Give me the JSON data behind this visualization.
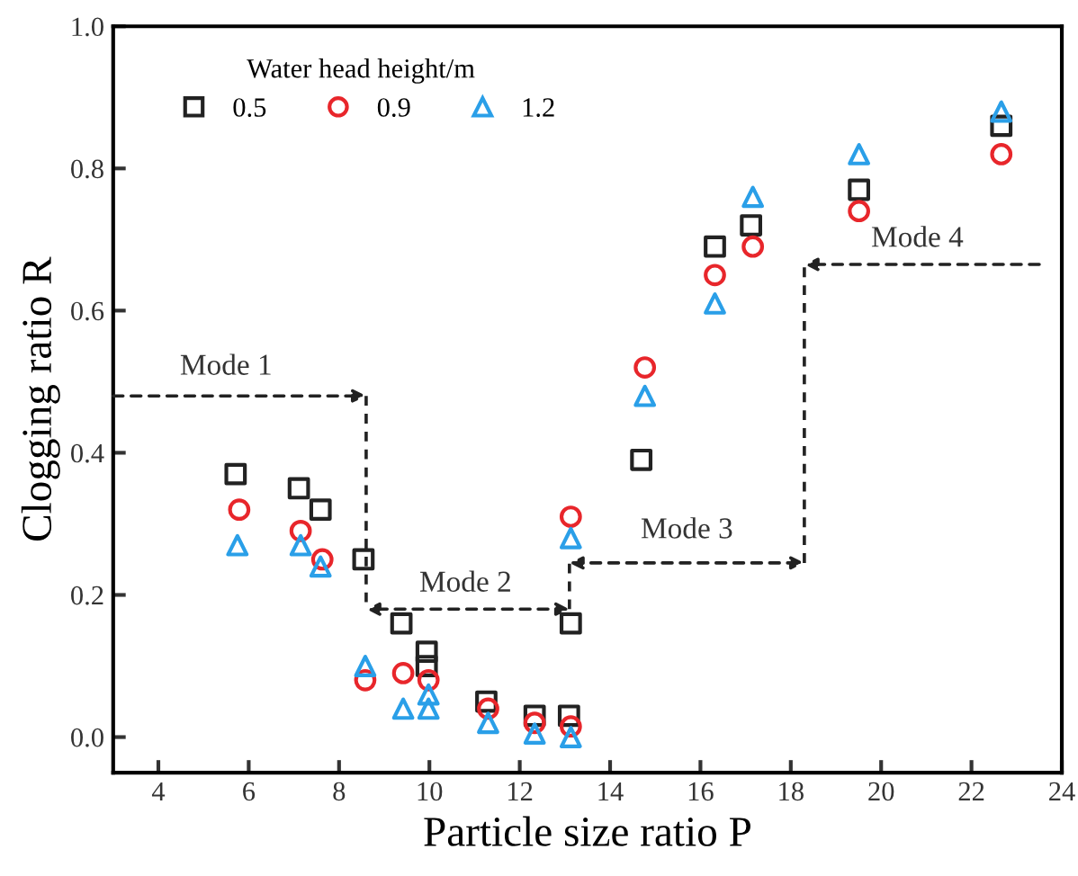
{
  "chart_data": {
    "type": "scatter",
    "xlabel": "Particle size ratio P",
    "ylabel": "Clogging ratio R",
    "legend_title": "Water head height/m",
    "legend": "top left",
    "grid": false,
    "xlim": [
      3,
      24
    ],
    "xticks": [
      4,
      6,
      8,
      10,
      12,
      14,
      16,
      18,
      20,
      22,
      24
    ],
    "ylim": [
      -0.05,
      1.0
    ],
    "yticks": [
      {
        "value": 0,
        "label": "0.0"
      },
      {
        "value": 0.2,
        "label": "0.2"
      },
      {
        "value": 0.4,
        "label": "0.4"
      },
      {
        "value": 0.6,
        "label": "0.6"
      },
      {
        "value": 0.8,
        "label": "0.8"
      },
      {
        "value": 1.0,
        "label": "1.0"
      }
    ],
    "annotations": [
      "Mode 1",
      "Mode 2",
      "Mode 3",
      "Mode 4"
    ],
    "series": [
      {
        "name": "0.5",
        "color": "#222222",
        "marker": "square",
        "x": [
          5.71,
          7.11,
          7.59,
          8.54,
          9.38,
          9.94,
          9.94,
          11.26,
          12.33,
          13.09,
          13.13,
          14.69,
          16.32,
          17.12,
          19.51,
          22.66
        ],
        "values": [
          0.37,
          0.35,
          0.32,
          0.25,
          0.16,
          0.12,
          0.1,
          0.05,
          0.03,
          0.03,
          0.16,
          0.39,
          0.69,
          0.72,
          0.77,
          0.86
        ]
      },
      {
        "name": "0.9",
        "color": "#e8262b",
        "marker": "circle",
        "x": [
          5.79,
          7.15,
          7.63,
          8.58,
          9.42,
          9.98,
          11.3,
          12.33,
          13.13,
          13.13,
          14.77,
          16.32,
          17.16,
          19.51,
          22.66
        ],
        "values": [
          0.32,
          0.29,
          0.25,
          0.08,
          0.09,
          0.08,
          0.04,
          0.02,
          0.015,
          0.31,
          0.52,
          0.65,
          0.69,
          0.74,
          0.82
        ]
      },
      {
        "name": "1.2",
        "color": "#2a9fe8",
        "marker": "triangle",
        "x": [
          5.75,
          7.15,
          7.59,
          8.58,
          9.42,
          9.98,
          9.98,
          11.3,
          12.33,
          13.13,
          13.13,
          14.77,
          16.32,
          17.16,
          19.51,
          22.66
        ],
        "values": [
          0.27,
          0.27,
          0.24,
          0.1,
          0.04,
          0.06,
          0.04,
          0.02,
          0.005,
          0.0,
          0.28,
          0.48,
          0.61,
          0.76,
          0.82,
          0.88
        ]
      }
    ]
  }
}
